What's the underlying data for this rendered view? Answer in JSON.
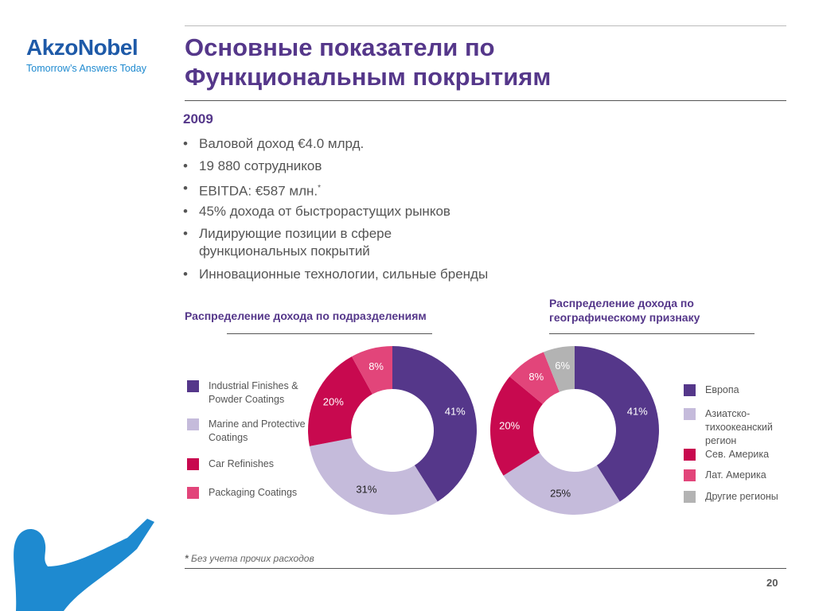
{
  "header": {
    "logo": "AkzoNobel",
    "tagline": "Tomorrow’s Answers Today",
    "title_lines": [
      "Основные показатели по",
      "Функциональным покрытиям"
    ]
  },
  "body": {
    "year": "2009",
    "bullets": [
      "Валовой доход €4.0 млрд.",
      "19 880 сотрудников",
      "EBITDA: €587 млн.",
      "45% дохода от быстрорастущих рынков",
      [
        "Лидирующие позиции в сфере",
        "функциональных покрытий"
      ],
      "Инновационные технологии, сильные бренды"
    ]
  },
  "footnote": {
    "mark": "*",
    "text": "Без учета прочих расходов"
  },
  "page_number": "20",
  "chart_data": [
    {
      "type": "donut",
      "title": [
        "Распределение дохода по подразделениям"
      ],
      "categories": [
        "Industrial Finishes & Powder Coatings",
        "Marine and Protective Coatings",
        "Car Refinishes",
        "Packaging Coatings"
      ],
      "values": [
        41,
        31,
        20,
        8
      ],
      "value_labels": [
        "41%",
        "31%",
        "20%",
        "8%"
      ],
      "colors": [
        "#55378a",
        "#c5bbdb",
        "#c8094f",
        "#e2457a"
      ]
    },
    {
      "type": "donut",
      "title": [
        "Распределение дохода  по",
        "географическому признаку"
      ],
      "categories": [
        "Европа",
        "Азиатско-тихоокеанский регион",
        "Сев. Америка",
        "Лат. Америка",
        "Другие регионы"
      ],
      "values": [
        41,
        25,
        20,
        8,
        6
      ],
      "value_labels": [
        "41%",
        "25%",
        "20%",
        "8%",
        "6%"
      ],
      "colors": [
        "#55378a",
        "#c5bbdb",
        "#c8094f",
        "#e2457a",
        "#b3b3b3"
      ]
    }
  ]
}
